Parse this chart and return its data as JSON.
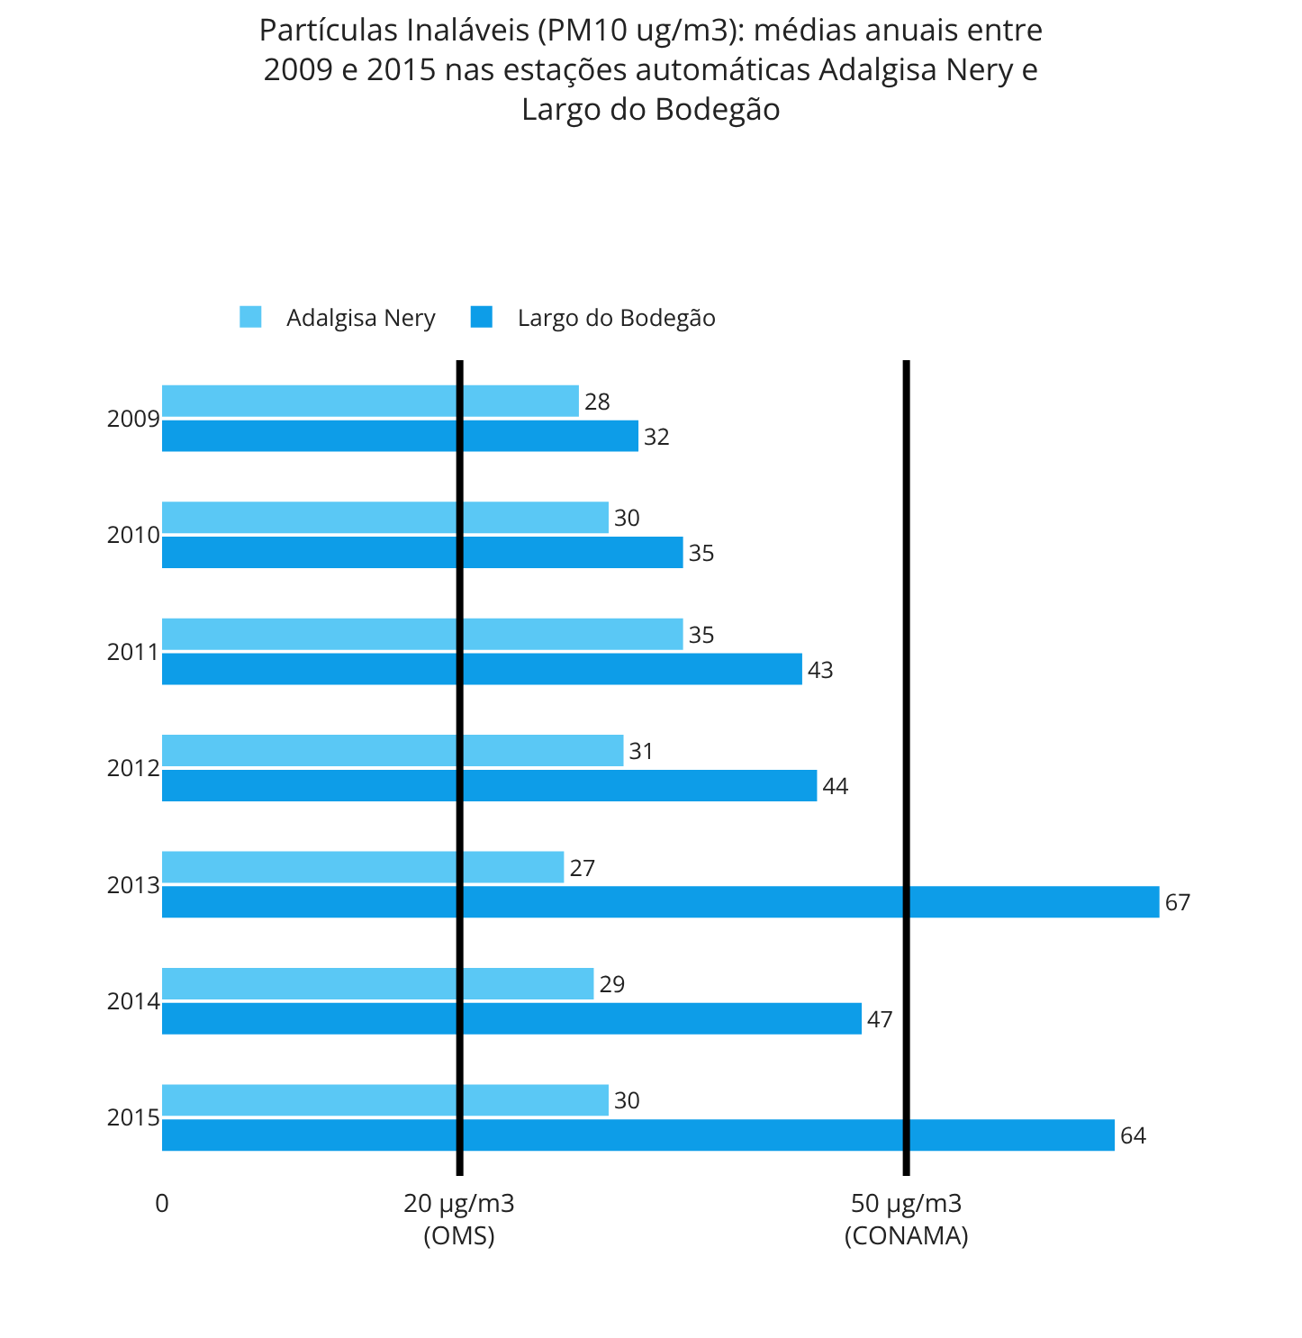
{
  "chart_data": {
    "type": "bar",
    "orientation": "horizontal",
    "title": "Partículas Inaláveis (PM10 ug/m3): médias anuais entre\n2009 e 2015 nas estações automáticas Adalgisa Nery e\nLargo do Bodegão",
    "categories": [
      "2009",
      "2010",
      "2011",
      "2012",
      "2013",
      "2014",
      "2015"
    ],
    "series": [
      {
        "name": "Adalgisa Nery",
        "color": "#5ac8f5",
        "values": [
          28,
          30,
          35,
          31,
          27,
          29,
          30
        ]
      },
      {
        "name": "Largo do Bodegão",
        "color": "#0d9de8",
        "values": [
          32,
          35,
          43,
          44,
          67,
          47,
          64
        ]
      }
    ],
    "tick_labels": "y",
    "annotations": [
      "0"
    ],
    "ref_lines": [
      {
        "axis": "x",
        "value": 20,
        "color": "#000000",
        "label": "20 µg/m3\n(OMS)"
      },
      {
        "axis": "x",
        "value": 50,
        "color": "#000000",
        "label": "50 µg/m3\n(CONAMA)"
      }
    ],
    "data_labels": true,
    "grid": false,
    "legend": "top left"
  }
}
